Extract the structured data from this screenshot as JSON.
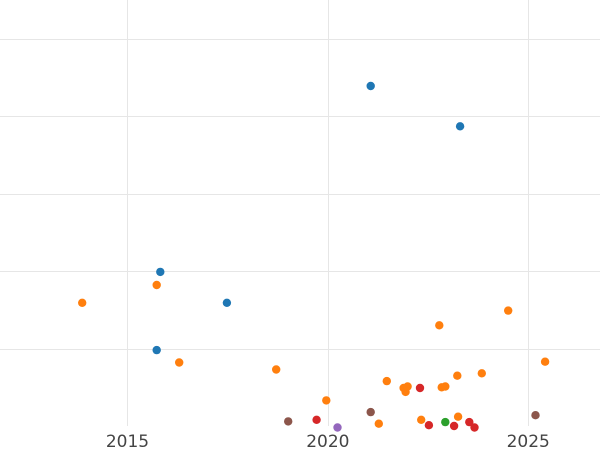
{
  "chart_data": {
    "type": "scatter",
    "title": "",
    "xlabel": "",
    "ylabel": "",
    "xlim": [
      2011.82,
      2026.79
    ],
    "ylim": [
      0,
      5.5
    ],
    "xticks": [
      2015,
      2020,
      2025
    ],
    "xtick_labels": [
      "2015",
      "2020",
      "2025"
    ],
    "ygrid": [
      1,
      2,
      3,
      4,
      5
    ],
    "grid": true,
    "legend": false,
    "series": [
      {
        "name": "blue",
        "color": "#1f77b4",
        "points": [
          {
            "x": 2021.07,
            "y": 4.39
          },
          {
            "x": 2023.3,
            "y": 3.87
          },
          {
            "x": 2015.82,
            "y": 1.99
          },
          {
            "x": 2017.48,
            "y": 1.59
          },
          {
            "x": 2015.73,
            "y": 0.98
          }
        ]
      },
      {
        "name": "orange",
        "color": "#ff7f0e",
        "points": [
          {
            "x": 2015.73,
            "y": 1.82
          },
          {
            "x": 2013.87,
            "y": 1.59
          },
          {
            "x": 2016.29,
            "y": 0.82
          },
          {
            "x": 2018.71,
            "y": 0.73
          },
          {
            "x": 2019.96,
            "y": 0.33
          },
          {
            "x": 2021.27,
            "y": 0.03
          },
          {
            "x": 2021.47,
            "y": 0.58
          },
          {
            "x": 2021.89,
            "y": 0.49
          },
          {
            "x": 2021.94,
            "y": 0.44
          },
          {
            "x": 2021.99,
            "y": 0.51
          },
          {
            "x": 2022.33,
            "y": 0.08
          },
          {
            "x": 2022.78,
            "y": 1.3
          },
          {
            "x": 2022.84,
            "y": 0.5
          },
          {
            "x": 2022.93,
            "y": 0.51
          },
          {
            "x": 2023.23,
            "y": 0.65
          },
          {
            "x": 2023.25,
            "y": 0.12
          },
          {
            "x": 2023.84,
            "y": 0.68
          },
          {
            "x": 2024.5,
            "y": 1.49
          },
          {
            "x": 2025.42,
            "y": 0.83
          }
        ]
      },
      {
        "name": "green",
        "color": "#2ca02c",
        "points": [
          {
            "x": 2022.93,
            "y": 0.05
          }
        ]
      },
      {
        "name": "red",
        "color": "#d62728",
        "points": [
          {
            "x": 2019.72,
            "y": 0.08
          },
          {
            "x": 2022.3,
            "y": 0.49
          },
          {
            "x": 2022.52,
            "y": 0.01
          },
          {
            "x": 2023.15,
            "y": 0.0
          },
          {
            "x": 2023.53,
            "y": 0.05
          },
          {
            "x": 2023.66,
            "y": -0.02
          }
        ]
      },
      {
        "name": "purple",
        "color": "#9467bd",
        "points": [
          {
            "x": 2020.24,
            "y": -0.02
          }
        ]
      },
      {
        "name": "brown",
        "color": "#8c564b",
        "points": [
          {
            "x": 2019.01,
            "y": 0.06
          },
          {
            "x": 2021.07,
            "y": 0.18
          },
          {
            "x": 2025.18,
            "y": 0.14
          }
        ]
      }
    ]
  }
}
